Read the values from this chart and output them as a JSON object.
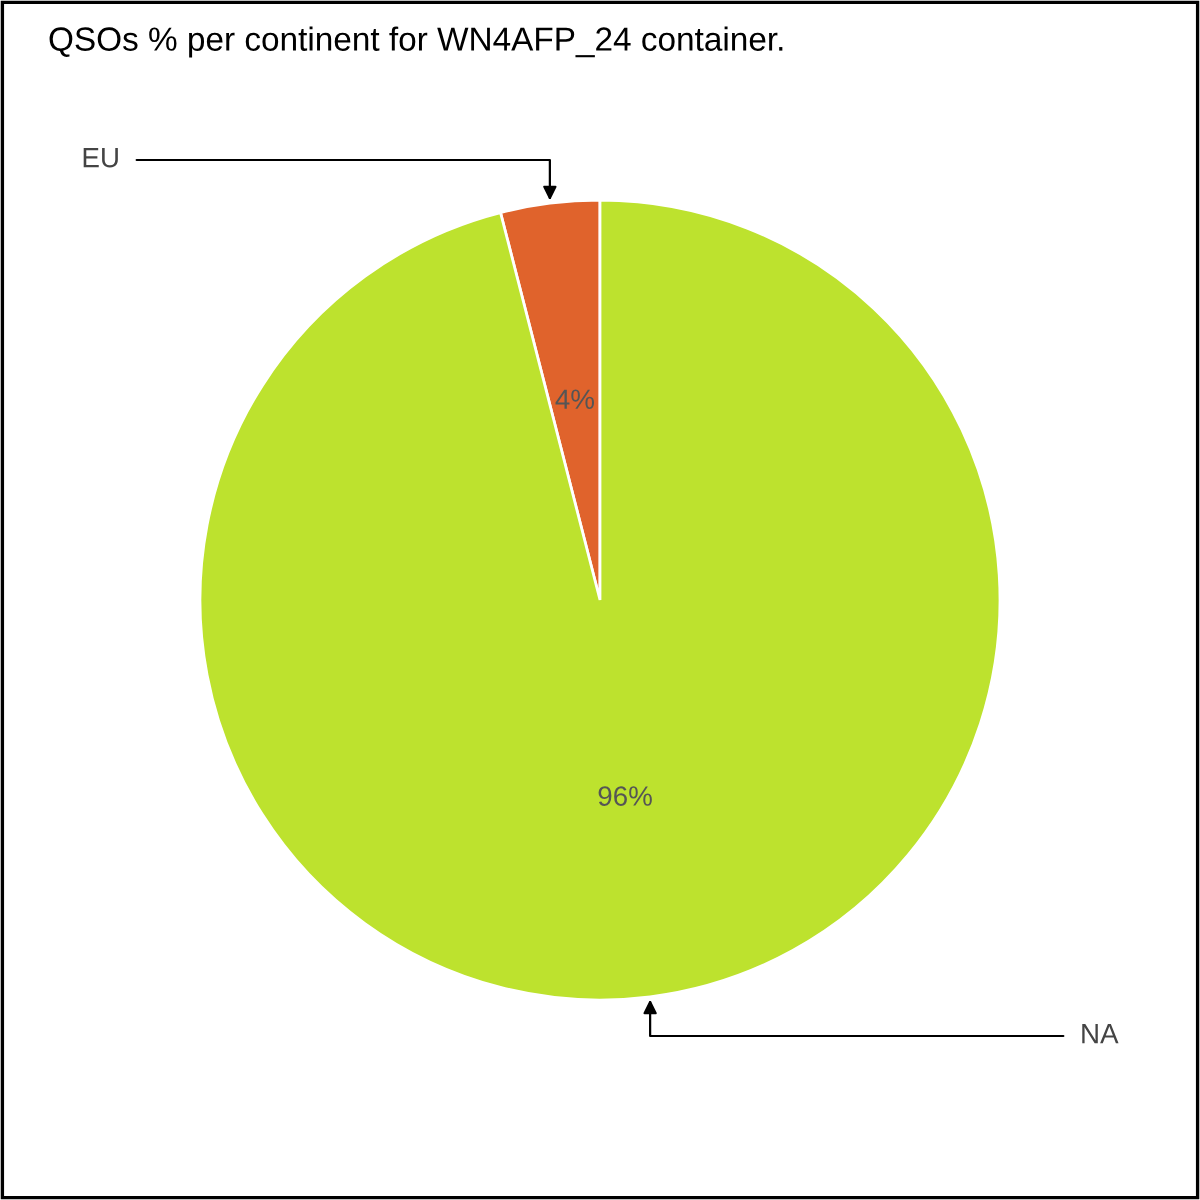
{
  "chart_data": {
    "type": "pie",
    "title": "QSOs % per continent for WN4AFP_24 container.",
    "categories": [
      "EU",
      "NA"
    ],
    "values": [
      4,
      96
    ],
    "colors": [
      "#e0632c",
      "#bde22e"
    ],
    "value_labels": [
      "4%",
      "96%"
    ],
    "legend": false
  }
}
